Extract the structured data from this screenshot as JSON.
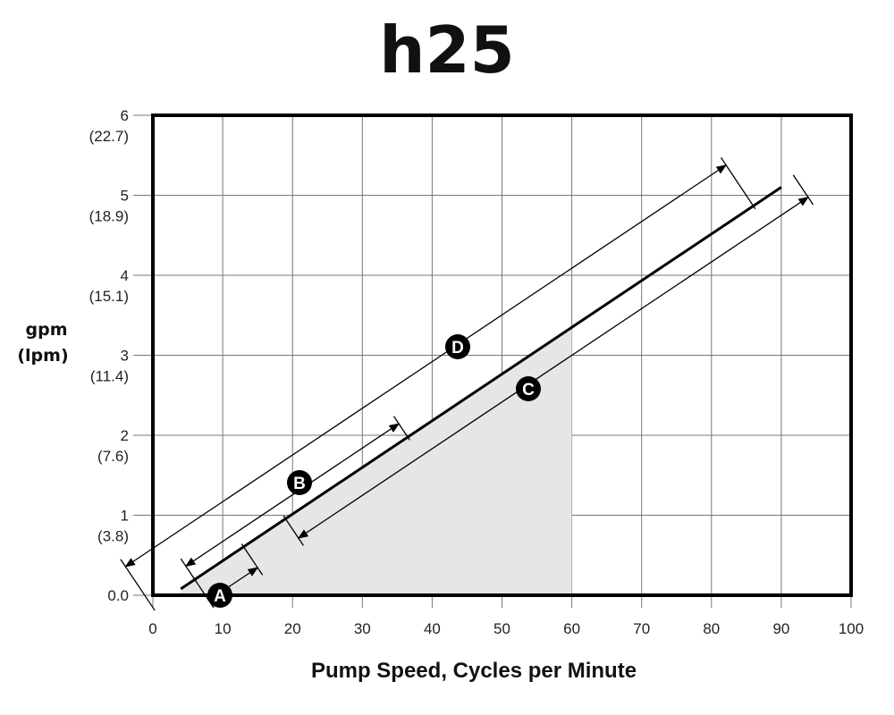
{
  "chart_data": {
    "type": "line",
    "title": "h25",
    "xlabel": "Pump Speed, Cycles per Minute",
    "ylabel": [
      "gpm",
      "(lpm)"
    ],
    "xlim": [
      0,
      100
    ],
    "ylim": [
      0,
      6
    ],
    "grid": true,
    "xticks": [
      "0",
      "10",
      "20",
      "30",
      "40",
      "50",
      "60",
      "70",
      "80",
      "90",
      "100"
    ],
    "yticks": [
      {
        "value": 0,
        "label": "0.0",
        "sub": ""
      },
      {
        "value": 1,
        "label": "1",
        "sub": "(3.8)"
      },
      {
        "value": 2,
        "label": "2",
        "sub": "(7.6)"
      },
      {
        "value": 3,
        "label": "3",
        "sub": "(11.4)"
      },
      {
        "value": 4,
        "label": "4",
        "sub": "(15.1)"
      },
      {
        "value": 5,
        "label": "5",
        "sub": "(18.9)"
      },
      {
        "value": 6,
        "label": "6",
        "sub": "(22.7)"
      }
    ],
    "series": [
      {
        "x": [
          4,
          90
        ],
        "y": [
          0.08,
          5.1
        ],
        "color": "#000000"
      }
    ],
    "shaded_region": {
      "x_max": 60,
      "color": "#e6e6e6"
    },
    "ranges": [
      {
        "label": "A",
        "x_start": 6,
        "x_end": 13,
        "side": "below"
      },
      {
        "label": "B",
        "x_start": 6,
        "x_end": 36.5,
        "side": "above"
      },
      {
        "label": "C",
        "x_start": 19,
        "x_end": 92,
        "side": "below"
      },
      {
        "label": "D",
        "x_start": 0,
        "x_end": 86,
        "side": "above"
      }
    ]
  }
}
